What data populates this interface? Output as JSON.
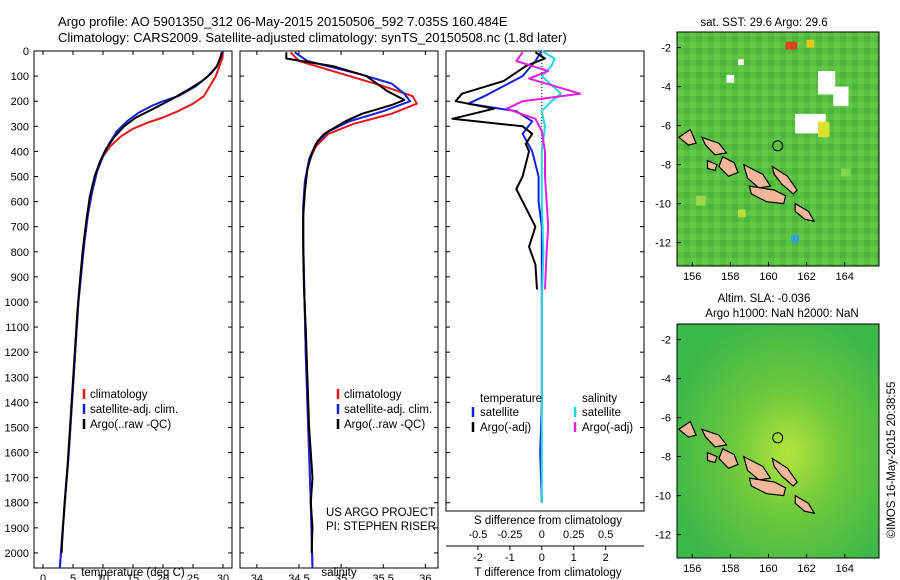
{
  "header": {
    "title1": "Argo profile: AO 5901350_312 06-May-2015 20150506_592 7.035S 160.484E",
    "title2": "Climatology: CARS2009. Satellite-adjusted climatology: synTS_20150508.nc (1.8d later)"
  },
  "colors": {
    "climatology": "#e8141a",
    "satellite": "#1420e0",
    "argo": "#000000",
    "satellite_salinity": "#20d8e0",
    "argo_salinity": "#e020e0"
  },
  "depth_axis": {
    "ticks": [
      0,
      100,
      200,
      300,
      400,
      500,
      600,
      700,
      800,
      900,
      1000,
      1100,
      1200,
      1300,
      1400,
      1500,
      1600,
      1700,
      1800,
      1900,
      2000
    ],
    "ylim": [
      0,
      2060
    ]
  },
  "chart_data": [
    {
      "type": "line",
      "xlabel": "temperature (deg C)",
      "xlim": [
        -1.5,
        31.5
      ],
      "xticks": [
        0,
        5,
        10,
        15,
        20,
        25,
        30
      ],
      "legend": {
        "entries": [
          "climatology",
          "satellite-adj. clim.",
          "Argo(..raw -QC)"
        ],
        "placement": "lower-center"
      },
      "series": [
        {
          "name": "climatology",
          "color_key": "climatology",
          "points": [
            [
              30,
              0
            ],
            [
              29.9,
              30
            ],
            [
              29.4,
              60
            ],
            [
              28.8,
              100
            ],
            [
              27.8,
              140
            ],
            [
              26.8,
              180
            ],
            [
              25,
              210
            ],
            [
              22.5,
              240
            ],
            [
              20,
              265
            ],
            [
              17.5,
              285
            ],
            [
              15,
              310
            ],
            [
              13,
              340
            ],
            [
              11.2,
              380
            ],
            [
              10,
              420
            ],
            [
              9,
              480
            ],
            [
              8.2,
              560
            ],
            [
              7.5,
              650
            ],
            [
              6.9,
              760
            ],
            [
              6.4,
              880
            ],
            [
              5.9,
              1000
            ],
            [
              5.5,
              1150
            ],
            [
              5.1,
              1300
            ],
            [
              4.7,
              1450
            ],
            [
              4.3,
              1600
            ],
            [
              3.8,
              1750
            ],
            [
              3.3,
              1900
            ],
            [
              2.8,
              2060
            ]
          ]
        },
        {
          "name": "satellite-adj. clim.",
          "color_key": "satellite",
          "points": [
            [
              30,
              0
            ],
            [
              29.7,
              20
            ],
            [
              29,
              60
            ],
            [
              27.5,
              100
            ],
            [
              25.5,
              140
            ],
            [
              22.5,
              180
            ],
            [
              20,
              200
            ],
            [
              18,
              220
            ],
            [
              16,
              245
            ],
            [
              14,
              280
            ],
            [
              12.3,
              320
            ],
            [
              11,
              370
            ],
            [
              10,
              420
            ],
            [
              9,
              480
            ],
            [
              8.2,
              560
            ],
            [
              7.5,
              650
            ],
            [
              6.9,
              760
            ],
            [
              6.4,
              880
            ],
            [
              5.9,
              1000
            ],
            [
              5.5,
              1150
            ],
            [
              5.1,
              1300
            ],
            [
              4.7,
              1450
            ],
            [
              4.3,
              1600
            ],
            [
              3.8,
              1750
            ],
            [
              3.3,
              1900
            ],
            [
              2.8,
              2060
            ]
          ]
        },
        {
          "name": "Argo(..raw -QC)",
          "color_key": "argo",
          "points": [
            [
              29.8,
              5
            ],
            [
              29.5,
              30
            ],
            [
              29,
              60
            ],
            [
              28,
              90
            ],
            [
              26.5,
              120
            ],
            [
              24.5,
              150
            ],
            [
              22,
              185
            ],
            [
              20,
              210
            ],
            [
              18,
              235
            ],
            [
              15.5,
              265
            ],
            [
              13.5,
              300
            ],
            [
              12,
              340
            ],
            [
              10.5,
              390
            ],
            [
              9.5,
              440
            ],
            [
              8.6,
              500
            ],
            [
              7.8,
              580
            ],
            [
              7.2,
              680
            ],
            [
              6.6,
              800
            ],
            [
              6.1,
              930
            ],
            [
              5.7,
              1050
            ],
            [
              5.3,
              1200
            ],
            [
              4.9,
              1350
            ],
            [
              4.5,
              1500
            ],
            [
              4.1,
              1650
            ],
            [
              3.6,
              1800
            ],
            [
              3.2,
              1950
            ],
            [
              3.1,
              2000
            ]
          ]
        }
      ]
    },
    {
      "type": "line",
      "xlabel": "salinity",
      "xlim": [
        33.8,
        36.15
      ],
      "xticks": [
        34,
        34.5,
        35,
        35.5,
        36
      ],
      "xticklabels": [
        "34",
        "34.5",
        "35",
        "35.5",
        "36"
      ],
      "legend": {
        "entries": [
          "climatology",
          "satellite-adj. clim.",
          "Argo(..raw -QC)"
        ],
        "placement": "lower-right"
      },
      "annotation": [
        "US ARGO PROJECT",
        "PI: STEPHEN RISER"
      ],
      "series": [
        {
          "name": "climatology",
          "color_key": "climatology",
          "points": [
            [
              34.4,
              5
            ],
            [
              34.5,
              40
            ],
            [
              35.0,
              90
            ],
            [
              35.5,
              140
            ],
            [
              35.85,
              180
            ],
            [
              35.9,
              210
            ],
            [
              35.6,
              250
            ],
            [
              35.15,
              290
            ],
            [
              34.85,
              330
            ],
            [
              34.7,
              380
            ],
            [
              34.62,
              440
            ],
            [
              34.57,
              520
            ],
            [
              34.55,
              620
            ],
            [
              34.55,
              750
            ],
            [
              34.56,
              900
            ],
            [
              34.57,
              1050
            ],
            [
              34.58,
              1200
            ],
            [
              34.6,
              1400
            ],
            [
              34.62,
              1600
            ],
            [
              34.64,
              1800
            ],
            [
              34.66,
              2060
            ]
          ]
        },
        {
          "name": "satellite-adj. clim.",
          "color_key": "satellite",
          "points": [
            [
              34.45,
              5
            ],
            [
              34.6,
              40
            ],
            [
              35.2,
              90
            ],
            [
              35.6,
              130
            ],
            [
              35.75,
              170
            ],
            [
              35.82,
              200
            ],
            [
              35.5,
              240
            ],
            [
              35.1,
              280
            ],
            [
              34.85,
              320
            ],
            [
              34.7,
              370
            ],
            [
              34.62,
              430
            ],
            [
              34.57,
              520
            ],
            [
              34.55,
              620
            ],
            [
              34.55,
              750
            ],
            [
              34.56,
              900
            ],
            [
              34.57,
              1050
            ],
            [
              34.58,
              1200
            ],
            [
              34.6,
              1400
            ],
            [
              34.62,
              1600
            ],
            [
              34.64,
              1800
            ],
            [
              34.66,
              2060
            ]
          ]
        },
        {
          "name": "Argo(..raw -QC)",
          "color_key": "argo",
          "points": [
            [
              34.35,
              5
            ],
            [
              34.35,
              30
            ],
            [
              34.9,
              60
            ],
            [
              35.3,
              100
            ],
            [
              35.55,
              160
            ],
            [
              35.75,
              195
            ],
            [
              35.6,
              215
            ],
            [
              35.25,
              250
            ],
            [
              35.05,
              280
            ],
            [
              34.95,
              300
            ],
            [
              34.8,
              330
            ],
            [
              34.72,
              360
            ],
            [
              34.66,
              400
            ],
            [
              34.6,
              470
            ],
            [
              34.57,
              560
            ],
            [
              34.55,
              660
            ],
            [
              34.55,
              800
            ],
            [
              34.56,
              950
            ],
            [
              34.58,
              1100
            ],
            [
              34.6,
              1300
            ],
            [
              34.62,
              1500
            ],
            [
              34.66,
              1700
            ],
            [
              34.64,
              1800
            ],
            [
              34.66,
              1900
            ],
            [
              34.65,
              2000
            ]
          ]
        }
      ]
    },
    {
      "type": "line",
      "xlabel": "T difference from climatology",
      "xlabel_top": "S difference from climatology",
      "xlim": [
        -3,
        3.2
      ],
      "xticks": [
        -2,
        -1,
        0,
        1,
        2
      ],
      "xticks_s": [
        -0.5,
        -0.25,
        0,
        0.25,
        0.5
      ],
      "xticks_s_labels": [
        "-0.5",
        "-0.25",
        "0",
        "0.25",
        "0.5"
      ],
      "legend": {
        "temperature_header": "temperature",
        "salinity_header": "salinity",
        "temperature_entries": [
          "satellite",
          "Argo(-adj)"
        ],
        "salinity_entries": [
          "satellite",
          "Argo(-adj)"
        ],
        "placement": "lower"
      },
      "series": [
        {
          "name": "satellite",
          "quantity": "temperature",
          "color_key": "satellite",
          "points": [
            [
              0,
              0
            ],
            [
              -0.2,
              40
            ],
            [
              -0.6,
              100
            ],
            [
              -1.8,
              180
            ],
            [
              -2.3,
              210
            ],
            [
              -0.8,
              240
            ],
            [
              -0.3,
              280
            ],
            [
              -0.6,
              330
            ],
            [
              -0.3,
              400
            ],
            [
              -0.1,
              500
            ],
            [
              -0.1,
              600
            ],
            [
              0,
              700
            ],
            [
              0,
              800
            ],
            [
              0,
              900
            ],
            [
              0,
              1000
            ],
            [
              0,
              1200
            ],
            [
              0,
              1400
            ],
            [
              -0.05,
              1600
            ],
            [
              0,
              1800
            ],
            [
              0,
              2000
            ],
            [
              0,
              2060
            ]
          ]
        },
        {
          "name": "Argo(-adj)",
          "quantity": "temperature",
          "color_key": "argo",
          "points": [
            [
              -0.2,
              5
            ],
            [
              0.1,
              30
            ],
            [
              -0.5,
              60
            ],
            [
              -1.2,
              120
            ],
            [
              -2.5,
              170
            ],
            [
              -2.7,
              200
            ],
            [
              -1.5,
              230
            ],
            [
              -2.8,
              270
            ],
            [
              -0.6,
              300
            ],
            [
              -0.3,
              330
            ],
            [
              -0.5,
              370
            ],
            [
              -0.4,
              400
            ],
            [
              -0.5,
              450
            ],
            [
              -0.6,
              500
            ],
            [
              -0.8,
              550
            ],
            [
              -0.6,
              600
            ],
            [
              -0.4,
              650
            ],
            [
              -0.2,
              700
            ],
            [
              -0.4,
              780
            ],
            [
              -0.2,
              850
            ],
            [
              -0.15,
              950
            ]
          ]
        },
        {
          "name": "satellite",
          "quantity": "salinity",
          "color_key": "satellite_salinity",
          "points": [
            [
              0,
              0
            ],
            [
              0.4,
              30
            ],
            [
              0.3,
              60
            ],
            [
              0,
              100
            ],
            [
              0.6,
              170
            ],
            [
              0.3,
              200
            ],
            [
              0,
              240
            ],
            [
              0.1,
              300
            ],
            [
              0,
              400
            ],
            [
              0,
              600
            ],
            [
              0.05,
              800
            ],
            [
              0,
              1000
            ],
            [
              0,
              1200
            ],
            [
              0,
              1400
            ],
            [
              0,
              1600
            ],
            [
              0,
              1800
            ],
            [
              0,
              2060
            ]
          ]
        },
        {
          "name": "Argo(-adj)",
          "quantity": "salinity",
          "color_key": "argo_salinity",
          "points": [
            [
              -0.6,
              5
            ],
            [
              -0.8,
              40
            ],
            [
              0.2,
              80
            ],
            [
              -0.4,
              110
            ],
            [
              1.2,
              170
            ],
            [
              -0.6,
              200
            ],
            [
              -1.1,
              230
            ],
            [
              -0.2,
              270
            ],
            [
              0,
              320
            ],
            [
              0.1,
              400
            ],
            [
              0.1,
              500
            ],
            [
              0.15,
              600
            ],
            [
              0.2,
              700
            ],
            [
              0.15,
              800
            ],
            [
              0.1,
              950
            ]
          ]
        }
      ]
    }
  ],
  "maps": [
    {
      "title_lines": [
        "sat. SST: 29.6  Argo: 29.6"
      ],
      "xticks": [
        156,
        158,
        160,
        162,
        164
      ],
      "yticks": [
        -2,
        -4,
        -6,
        -8,
        -10,
        -12
      ],
      "xlim": [
        155.2,
        165.8
      ],
      "ylim": [
        -13.2,
        -1.2
      ],
      "marker": {
        "lon": 160.484,
        "lat": -7.035
      }
    },
    {
      "title_lines": [
        "Altim. SLA: -0.036",
        "Argo h1000: NaN h2000: NaN"
      ],
      "xticks": [
        156,
        158,
        160,
        162,
        164
      ],
      "yticks": [
        -2,
        -4,
        -6,
        -8,
        -10,
        -12
      ],
      "xlim": [
        155.2,
        165.8
      ],
      "ylim": [
        -13.2,
        -1.2
      ],
      "marker": {
        "lon": 160.484,
        "lat": -7.035
      }
    }
  ],
  "footer": {
    "credit": "©IMOS 16-May-2015 20:38:55"
  }
}
